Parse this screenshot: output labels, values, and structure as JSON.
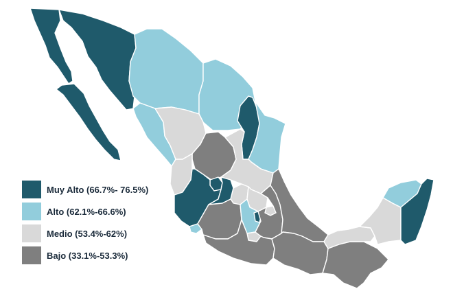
{
  "legend": [
    {
      "key": "muy_alto",
      "label": "Muy Alto (66.7%- 76.5%)",
      "color": "#1f5a6b"
    },
    {
      "key": "alto",
      "label": "Alto (62.1%-66.6%)",
      "color": "#92cddc"
    },
    {
      "key": "medio",
      "label": "Medio (53.4%-62%)",
      "color": "#d9d9d9"
    },
    {
      "key": "bajo",
      "label": "Bajo (33.1%-53.3%)",
      "color": "#7f7f7f"
    }
  ],
  "regions": [
    {
      "name": "baja-california",
      "category": "muy_alto"
    },
    {
      "name": "baja-california-sur",
      "category": "muy_alto"
    },
    {
      "name": "sonora",
      "category": "muy_alto"
    },
    {
      "name": "chihuahua",
      "category": "alto"
    },
    {
      "name": "coahuila",
      "category": "alto"
    },
    {
      "name": "nuevo-leon",
      "category": "muy_alto"
    },
    {
      "name": "tamaulipas",
      "category": "alto"
    },
    {
      "name": "sinaloa",
      "category": "alto"
    },
    {
      "name": "durango",
      "category": "medio"
    },
    {
      "name": "zacatecas",
      "category": "bajo"
    },
    {
      "name": "san-luis-potosi",
      "category": "medio"
    },
    {
      "name": "nayarit",
      "category": "medio"
    },
    {
      "name": "aguascalientes",
      "category": "muy_alto"
    },
    {
      "name": "jalisco",
      "category": "muy_alto"
    },
    {
      "name": "guanajuato",
      "category": "muy_alto"
    },
    {
      "name": "queretaro",
      "category": "medio"
    },
    {
      "name": "hidalgo",
      "category": "medio"
    },
    {
      "name": "colima",
      "category": "alto"
    },
    {
      "name": "michoacan",
      "category": "bajo"
    },
    {
      "name": "estado-de-mexico",
      "category": "alto"
    },
    {
      "name": "ciudad-de-mexico",
      "category": "muy_alto"
    },
    {
      "name": "morelos",
      "category": "medio"
    },
    {
      "name": "tlaxcala",
      "category": "medio"
    },
    {
      "name": "puebla",
      "category": "bajo"
    },
    {
      "name": "veracruz",
      "category": "bajo"
    },
    {
      "name": "guerrero",
      "category": "bajo"
    },
    {
      "name": "oaxaca",
      "category": "bajo"
    },
    {
      "name": "chiapas",
      "category": "bajo"
    },
    {
      "name": "tabasco",
      "category": "medio"
    },
    {
      "name": "campeche",
      "category": "medio"
    },
    {
      "name": "yucatan",
      "category": "alto"
    },
    {
      "name": "quintana-roo",
      "category": "muy_alto"
    }
  ]
}
